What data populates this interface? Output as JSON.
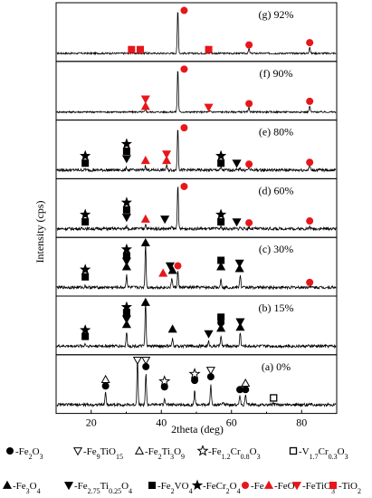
{
  "chart_data": {
    "type": "line",
    "title": "",
    "xlabel": "2theta (deg)",
    "ylabel": "Intensity (cps)",
    "xlim": [
      10,
      90
    ],
    "x_ticks": [
      20,
      40,
      60,
      80
    ],
    "x_tick_labels": [
      "20",
      "40",
      "60",
      "80"
    ],
    "panels": [
      {
        "name": "(g) 92%",
        "peaks": [
          [
            44.7,
            0.95
          ],
          [
            65.0,
            0.1
          ],
          [
            82.3,
            0.15
          ],
          [
            31.5,
            0.02
          ],
          [
            35.5,
            0.02
          ],
          [
            54.0,
            0.02
          ]
        ],
        "markers": [
          [
            "fe",
            46.5,
            0.95
          ],
          [
            "tio2",
            31.5,
            0.1
          ],
          [
            "tio2",
            34.0,
            0.1
          ],
          [
            "tio2",
            53.5,
            0.1
          ],
          [
            "fe",
            65.0,
            0.2
          ],
          [
            "fe",
            82.3,
            0.25
          ]
        ]
      },
      {
        "name": "(f) 90%",
        "peaks": [
          [
            44.7,
            0.95
          ],
          [
            35.5,
            0.06
          ],
          [
            65.0,
            0.1
          ],
          [
            82.3,
            0.13
          ],
          [
            54.0,
            0.02
          ]
        ],
        "markers": [
          [
            "fe",
            46.5,
            0.95
          ],
          [
            "feo_tri",
            35.5,
            0.14
          ],
          [
            "fetio3",
            35.5,
            0.3
          ],
          [
            "fetio3",
            53.5,
            0.12
          ],
          [
            "fe",
            65.0,
            0.2
          ],
          [
            "fe",
            82.3,
            0.25
          ]
        ]
      },
      {
        "name": "(e) 80%",
        "peaks": [
          [
            44.7,
            0.95
          ],
          [
            18.3,
            0.02
          ],
          [
            30.1,
            0.05
          ],
          [
            35.5,
            0.1
          ],
          [
            41.5,
            0.1
          ],
          [
            57.0,
            0.05
          ],
          [
            62.5,
            0.05
          ],
          [
            65.0,
            0.08
          ],
          [
            82.3,
            0.12
          ]
        ],
        "markers": [
          [
            "fe",
            46.5,
            0.95
          ],
          [
            "star",
            18.3,
            0.34
          ],
          [
            "square",
            18.3,
            0.18
          ],
          [
            "star",
            30.1,
            0.6
          ],
          [
            "square",
            30.1,
            0.44
          ],
          [
            "tri_down",
            30.1,
            0.28
          ],
          [
            "feo_tri",
            35.5,
            0.24
          ],
          [
            "fetio3",
            41.5,
            0.38
          ],
          [
            "feo_tri",
            41.5,
            0.24
          ],
          [
            "star",
            57.0,
            0.34
          ],
          [
            "square",
            57.0,
            0.18
          ],
          [
            "tri_down",
            61.5,
            0.18
          ],
          [
            "fe",
            65.0,
            0.16
          ],
          [
            "fe",
            82.3,
            0.2
          ]
        ]
      },
      {
        "name": "(d) 60%",
        "peaks": [
          [
            44.7,
            0.95
          ],
          [
            18.3,
            0.02
          ],
          [
            30.1,
            0.05
          ],
          [
            35.5,
            0.11
          ],
          [
            43.0,
            0.04
          ],
          [
            57.0,
            0.04
          ],
          [
            62.5,
            0.04
          ],
          [
            65.0,
            0.03
          ],
          [
            82.3,
            0.05
          ]
        ],
        "markers": [
          [
            "fe",
            46.5,
            0.95
          ],
          [
            "star",
            18.3,
            0.34
          ],
          [
            "square",
            18.3,
            0.18
          ],
          [
            "star",
            30.1,
            0.6
          ],
          [
            "square",
            30.1,
            0.44
          ],
          [
            "tri_down",
            30.1,
            0.28
          ],
          [
            "feo_tri",
            35.5,
            0.24
          ],
          [
            "tri_down",
            41.0,
            0.24
          ],
          [
            "star",
            57.0,
            0.34
          ],
          [
            "square",
            57.0,
            0.18
          ],
          [
            "tri_down",
            61.5,
            0.18
          ],
          [
            "fe",
            65.0,
            0.16
          ],
          [
            "fe",
            82.3,
            0.2
          ]
        ]
      },
      {
        "name": "(c) 30%",
        "peaks": [
          [
            35.5,
            0.95
          ],
          [
            18.3,
            0.04
          ],
          [
            30.1,
            0.28
          ],
          [
            43.0,
            0.22
          ],
          [
            44.7,
            0.35
          ],
          [
            57.0,
            0.2
          ],
          [
            62.5,
            0.28
          ],
          [
            82.3,
            0.03
          ]
        ],
        "markers": [
          [
            "up_tri",
            35.5,
            1.0
          ],
          [
            "star",
            18.3,
            0.42
          ],
          [
            "square",
            18.3,
            0.26
          ],
          [
            "star",
            30.1,
            0.86
          ],
          [
            "square",
            30.1,
            0.72
          ],
          [
            "tri_down",
            30.1,
            0.6
          ],
          [
            "up_tri",
            30.1,
            0.48
          ],
          [
            "feo_tri",
            40.5,
            0.34
          ],
          [
            "tri_down",
            42.5,
            0.5
          ],
          [
            "up_tri",
            43.2,
            0.4
          ],
          [
            "fe",
            44.7,
            0.5
          ],
          [
            "square",
            57.0,
            0.62
          ],
          [
            "up_tri",
            57.0,
            0.48
          ],
          [
            "tri_down",
            62.3,
            0.56
          ],
          [
            "up_tri",
            62.3,
            0.44
          ],
          [
            "fe",
            82.3,
            0.14
          ]
        ]
      },
      {
        "name": "(b) 15%",
        "peaks": [
          [
            35.5,
            0.95
          ],
          [
            18.3,
            0.05
          ],
          [
            30.1,
            0.3
          ],
          [
            43.2,
            0.15
          ],
          [
            53.5,
            0.1
          ],
          [
            57.0,
            0.22
          ],
          [
            62.5,
            0.3
          ]
        ],
        "markers": [
          [
            "star",
            18.3,
            0.38
          ],
          [
            "square",
            18.3,
            0.24
          ],
          [
            "star",
            30.1,
            0.88
          ],
          [
            "square",
            30.1,
            0.76
          ],
          [
            "tri_down",
            30.1,
            0.62
          ],
          [
            "up_tri",
            30.1,
            0.5
          ],
          [
            "up_tri",
            35.5,
            0.98
          ],
          [
            "up_tri",
            43.2,
            0.4
          ],
          [
            "tri_down",
            53.5,
            0.3
          ],
          [
            "square",
            57.0,
            0.66
          ],
          [
            "dot",
            57.0,
            0.54
          ],
          [
            "up_tri",
            57.0,
            0.42
          ],
          [
            "tri_down",
            62.5,
            0.56
          ],
          [
            "up_tri",
            62.5,
            0.44
          ]
        ]
      },
      {
        "name": "(a) 0%",
        "peaks": [
          [
            24.1,
            0.3
          ],
          [
            33.2,
            1.0
          ],
          [
            35.6,
            0.7
          ],
          [
            40.9,
            0.15
          ],
          [
            49.5,
            0.3
          ],
          [
            54.1,
            0.45
          ],
          [
            57.6,
            0.06
          ],
          [
            62.4,
            0.22
          ],
          [
            64.0,
            0.22
          ],
          [
            72.0,
            0.04
          ]
        ],
        "markers": [
          [
            "tri_open",
            24.1,
            0.58
          ],
          [
            "dot",
            24.1,
            0.44
          ],
          [
            "tri_down_open",
            33.2,
            1.0
          ],
          [
            "tri_down_open",
            35.6,
            1.0
          ],
          [
            "dot",
            35.6,
            0.86
          ],
          [
            "star_open",
            40.9,
            0.54
          ],
          [
            "dot",
            40.9,
            0.42
          ],
          [
            "star_open",
            49.5,
            0.7
          ],
          [
            "dot",
            49.5,
            0.56
          ],
          [
            "tri_down_open",
            54.1,
            0.78
          ],
          [
            "dot",
            54.1,
            0.64
          ],
          [
            "dot",
            62.4,
            0.36
          ],
          [
            "tri_open",
            64.0,
            0.5
          ],
          [
            "dot",
            64.0,
            0.36
          ],
          [
            "square_open",
            72.0,
            0.18
          ]
        ]
      }
    ],
    "legend": [
      {
        "symbol": "dot",
        "label": "-Fe",
        "sub": "2",
        "label2": "O",
        "sub2": "3"
      },
      {
        "symbol": "tri_down_open",
        "label": "-Fe",
        "sub": "9",
        "label2": "TiO",
        "sub2": "15"
      },
      {
        "symbol": "tri_open",
        "label": "-Fe",
        "sub": "2",
        "label2": "Ti",
        "sub2": "3",
        "label3": "O",
        "sub3": "9"
      },
      {
        "symbol": "star_open",
        "label": "-Fe",
        "sub": "1.2",
        "label2": "Cr",
        "sub2": "0.8",
        "label3": "O",
        "sub3": "3"
      },
      {
        "symbol": "square_open",
        "label": "-V",
        "sub": "1.7",
        "label2": "Cr",
        "sub2": "0.3",
        "label3": "O",
        "sub3": "3"
      },
      {
        "symbol": "up_tri",
        "label": "-Fe",
        "sub": "3",
        "label2": "O",
        "sub2": "4"
      },
      {
        "symbol": "tri_down",
        "label": "-Fe",
        "sub": "2.75",
        "label2": "Ti",
        "sub2": "0.25",
        "label3": "O",
        "sub3": "4"
      },
      {
        "symbol": "square",
        "label": "-Fe",
        "sub": "2",
        "label2": "VO",
        "sub2": "4"
      },
      {
        "symbol": "star",
        "label": "-FeCr",
        "sub": "2",
        "label2": "O",
        "sub2": "4"
      },
      {
        "symbol": "fe",
        "label": "-Fe"
      },
      {
        "symbol": "feo_tri",
        "label": "-FeO"
      },
      {
        "symbol": "fetio3",
        "label": "-FeTiO",
        "sub": "3"
      },
      {
        "symbol": "tio2",
        "label": "-TiO",
        "sub": "2"
      }
    ]
  },
  "colors": {
    "red": "#e8161b",
    "black": "#000000"
  }
}
